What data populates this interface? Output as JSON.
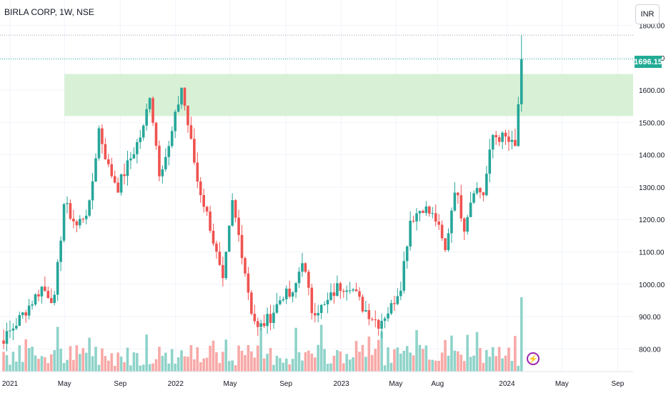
{
  "header": {
    "title": "BIRLA CORP, 1W, NSE"
  },
  "currency_button": "INR",
  "last_price_label": "1696.15",
  "event_icon": "lightning-icon",
  "colors": {
    "up": "#26a69a",
    "down": "#ef5350",
    "up_volume": "#8fd3c9",
    "down_volume": "#f7a9a7",
    "zone": "#d4f0d2",
    "price_tag": "#22ab94",
    "event_icon": "#9c27b0"
  },
  "chart_data": {
    "type": "candlestick",
    "symbol": "BIRLA CORP",
    "interval": "1W",
    "exchange": "NSE",
    "currency": "INR",
    "y_ticks": [
      "800.00",
      "900.00",
      "1000.00",
      "1100.00",
      "1200.00",
      "1300.00",
      "1400.00",
      "1500.00",
      "1600.00",
      "1700.00",
      "1800.00"
    ],
    "ylim": [
      730,
      1830
    ],
    "x_ticks": [
      "2021",
      "May",
      "Sep",
      "2022",
      "May",
      "Sep",
      "2023",
      "May",
      "Aug",
      "2024",
      "May",
      "Sep"
    ],
    "x_tick_dates": [
      "2021-01-01",
      "2021-05-01",
      "2021-09-01",
      "2022-01-01",
      "2022-05-01",
      "2022-09-01",
      "2023-01-01",
      "2023-05-01",
      "2023-08-01",
      "2024-01-01",
      "2024-05-01",
      "2024-09-01"
    ],
    "last_price": 1696.15,
    "high_marker": 1770,
    "supply_zone": {
      "from_date": "2021-05-01",
      "price_low": 1520,
      "price_high": 1650
    },
    "keypoints": [
      [
        "2020-11-06",
        790
      ],
      [
        "2020-12-25",
        840
      ],
      [
        "2021-02-05",
        920
      ],
      [
        "2021-03-12",
        990
      ],
      [
        "2021-04-09",
        950
      ],
      [
        "2021-04-30",
        1250
      ],
      [
        "2021-05-28",
        1180
      ],
      [
        "2021-06-25",
        1240
      ],
      [
        "2021-07-16",
        1480
      ],
      [
        "2021-08-06",
        1360
      ],
      [
        "2021-08-27",
        1300
      ],
      [
        "2021-09-24",
        1390
      ],
      [
        "2021-10-22",
        1480
      ],
      [
        "2021-11-05",
        1590
      ],
      [
        "2021-11-26",
        1350
      ],
      [
        "2021-12-17",
        1420
      ],
      [
        "2022-01-14",
        1610
      ],
      [
        "2022-02-18",
        1320
      ],
      [
        "2022-03-18",
        1180
      ],
      [
        "2022-04-15",
        1000
      ],
      [
        "2022-05-06",
        1250
      ],
      [
        "2022-05-27",
        1100
      ],
      [
        "2022-06-17",
        920
      ],
      [
        "2022-07-01",
        860
      ],
      [
        "2022-07-29",
        900
      ],
      [
        "2022-08-26",
        970
      ],
      [
        "2022-09-16",
        960
      ],
      [
        "2022-10-07",
        1080
      ],
      [
        "2022-10-28",
        920
      ],
      [
        "2022-11-25",
        930
      ],
      [
        "2022-12-23",
        990
      ],
      [
        "2023-01-20",
        1000
      ],
      [
        "2023-02-17",
        930
      ],
      [
        "2023-03-24",
        880
      ],
      [
        "2023-04-21",
        930
      ],
      [
        "2023-05-12",
        1000
      ],
      [
        "2023-06-02",
        1200
      ],
      [
        "2023-06-30",
        1240
      ],
      [
        "2023-07-28",
        1200
      ],
      [
        "2023-08-18",
        1100
      ],
      [
        "2023-09-08",
        1300
      ],
      [
        "2023-09-29",
        1180
      ],
      [
        "2023-10-20",
        1300
      ],
      [
        "2023-11-10",
        1280
      ],
      [
        "2023-12-01",
        1460
      ],
      [
        "2023-12-29",
        1450
      ],
      [
        "2024-01-19",
        1420
      ],
      [
        "2024-02-02",
        1696
      ]
    ]
  }
}
